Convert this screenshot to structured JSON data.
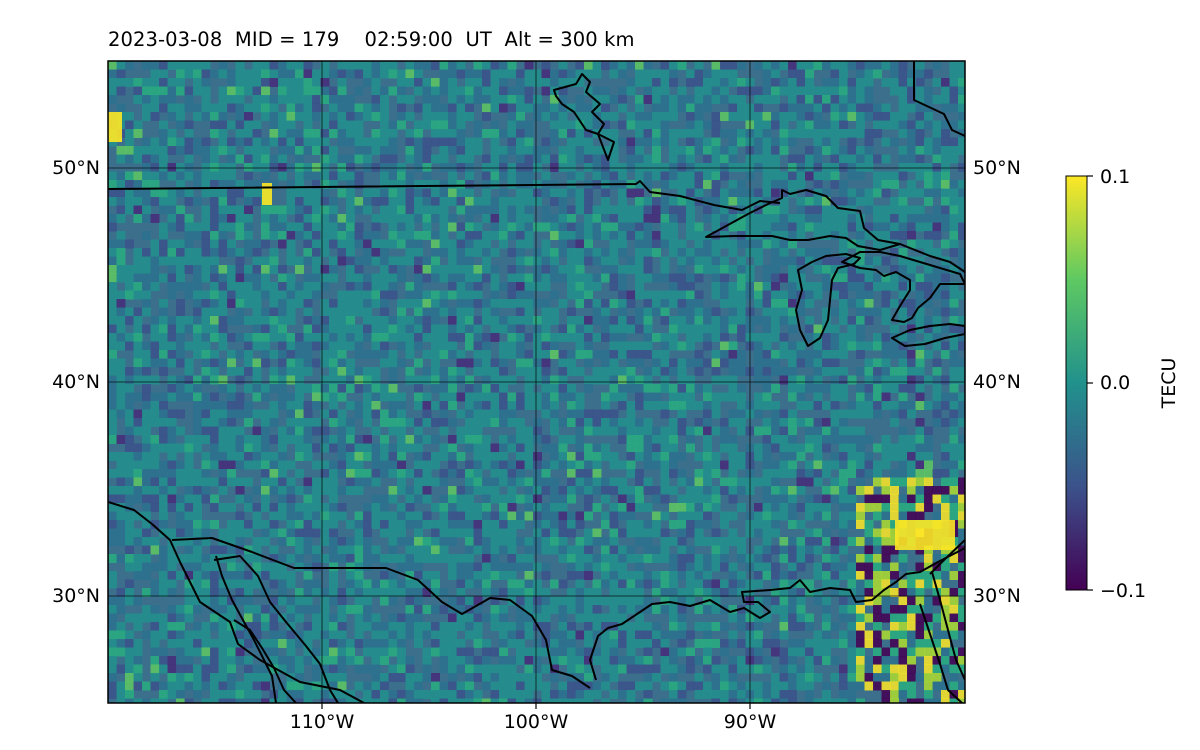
{
  "title": "2023-03-08  MID = 179    02:59:00  UT  Alt = 300 km",
  "map": {
    "projection": "lat-lon",
    "lon_range": [
      -120,
      -80
    ],
    "lat_range": [
      25,
      55
    ],
    "gridlines": {
      "lon": [
        -110,
        -100,
        -90
      ],
      "lat": [
        30,
        40,
        50
      ]
    },
    "lon_tick_labels": [
      "110°W",
      "100°W",
      "90°W"
    ],
    "lat_tick_labels": [
      "30°N",
      "40°N",
      "50°N"
    ],
    "features": [
      "coastlines",
      "country borders"
    ],
    "background_colormap": "viridis"
  },
  "colorbar": {
    "label": "TECU",
    "ticks": [
      "0.1",
      "0.0",
      "−0.1"
    ],
    "range": [
      -0.1,
      0.1
    ],
    "colormap": "viridis"
  },
  "colors": {
    "viridis_low": "#440154",
    "viridis_mid": "#21918c",
    "viridis_high": "#fde725",
    "outline": "#000000"
  }
}
